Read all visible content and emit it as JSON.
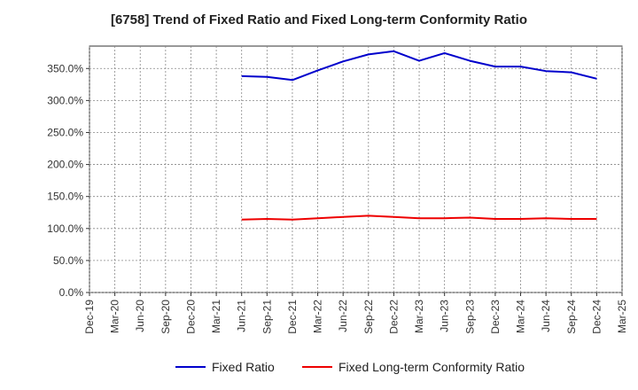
{
  "chart_data": {
    "type": "line",
    "title": "[6758]  Trend of Fixed Ratio and Fixed Long-term Conformity Ratio",
    "xlabel": "",
    "ylabel": "",
    "x_tick_labels": [
      "Dec-19",
      "Mar-20",
      "Jun-20",
      "Sep-20",
      "Dec-20",
      "Mar-21",
      "Jun-21",
      "Sep-21",
      "Dec-21",
      "Mar-22",
      "Jun-22",
      "Sep-22",
      "Dec-22",
      "Mar-23",
      "Jun-23",
      "Sep-23",
      "Dec-23",
      "Mar-24",
      "Jun-24",
      "Sep-24",
      "Dec-24",
      "Mar-25"
    ],
    "y_tick_labels": [
      "0.0%",
      "50.0%",
      "100.0%",
      "150.0%",
      "200.0%",
      "250.0%",
      "300.0%",
      "350.0%"
    ],
    "y_ticks": [
      0,
      50,
      100,
      150,
      200,
      250,
      300,
      350
    ],
    "ylim": [
      0,
      385
    ],
    "grid": true,
    "legend_position": "bottom-center",
    "x": [
      "Jun-21",
      "Sep-21",
      "Dec-21",
      "Mar-22",
      "Jun-22",
      "Sep-22",
      "Dec-22",
      "Mar-23",
      "Jun-23",
      "Sep-23",
      "Dec-23",
      "Mar-24",
      "Jun-24",
      "Sep-24",
      "Dec-24"
    ],
    "series": [
      {
        "name": "Fixed Ratio",
        "color": "#0000cc",
        "values": [
          338,
          337,
          332,
          347,
          361,
          372,
          377,
          362,
          374,
          362,
          353,
          353,
          346,
          344,
          334
        ]
      },
      {
        "name": "Fixed Long-term Conformity Ratio",
        "color": "#ee0000",
        "values": [
          114,
          115,
          114,
          116,
          118,
          120,
          118,
          116,
          116,
          117,
          115,
          115,
          116,
          115,
          115
        ]
      }
    ]
  }
}
